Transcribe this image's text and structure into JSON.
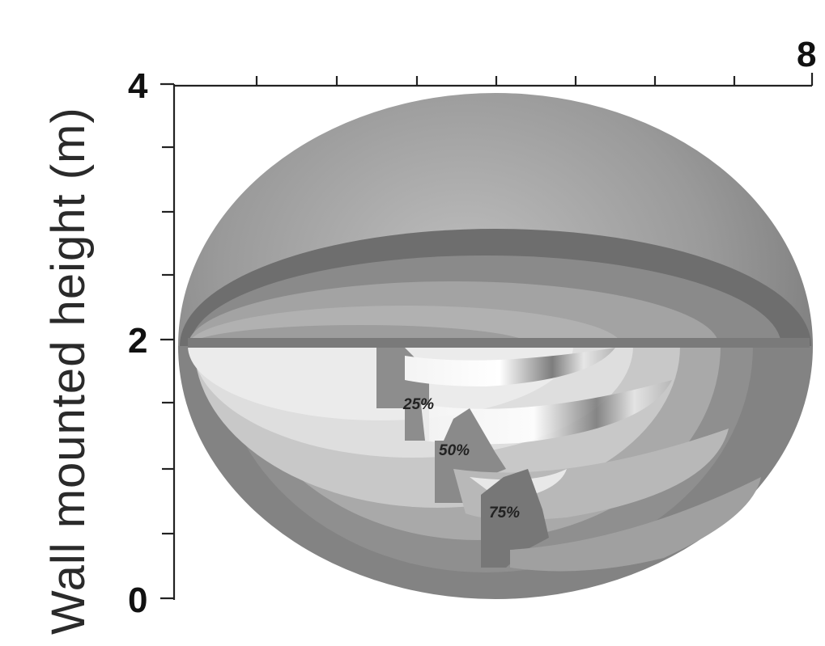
{
  "axes": {
    "y_title": "Wall mounted height (m)",
    "y_ticks": {
      "bottom": "0",
      "middle": "2",
      "top": "4"
    },
    "x_ticks": {
      "right": "8"
    }
  },
  "zones": {
    "z25": "25%",
    "z50": "50%",
    "z75": "75%"
  }
}
